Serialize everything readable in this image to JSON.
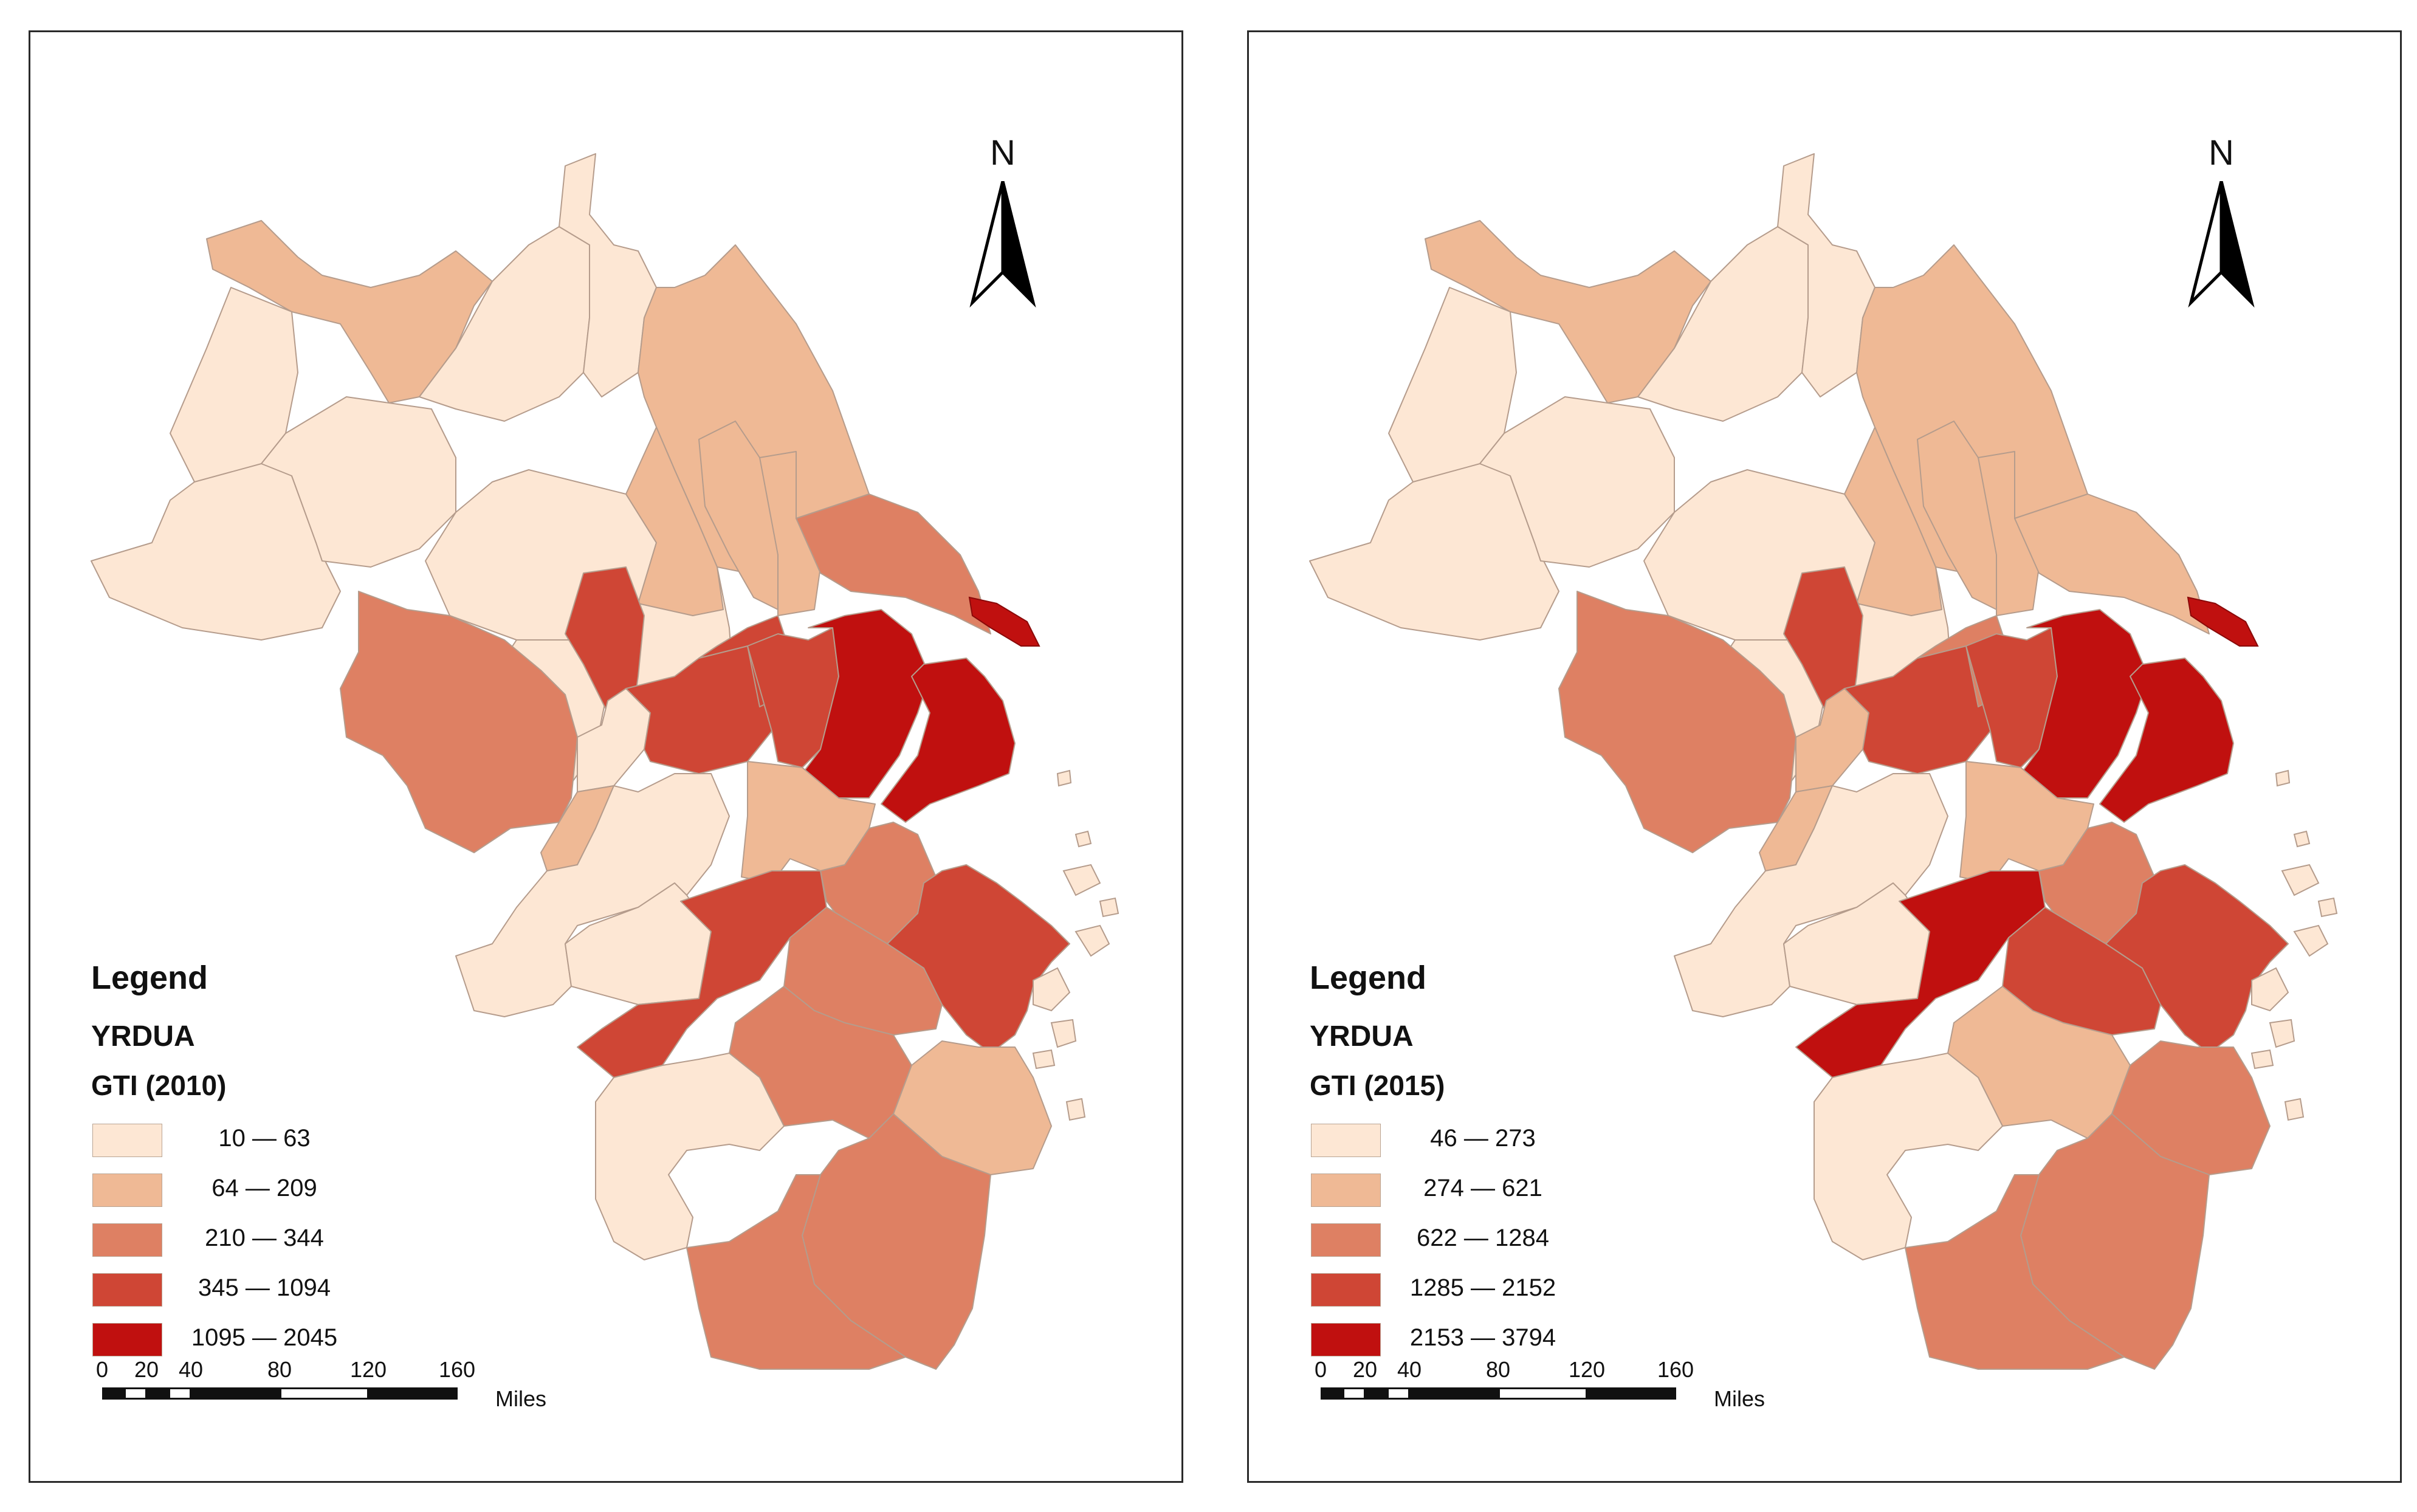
{
  "maps": [
    {
      "legend_title": "Legend",
      "layer_name": "YRDUA",
      "field_label": "GTI (2010)",
      "classes": [
        {
          "label": "10 — 63",
          "color": "#fde7d4"
        },
        {
          "label": "64 — 209",
          "color": "#efb995"
        },
        {
          "label": "210 — 344",
          "color": "#de8063"
        },
        {
          "label": "345 — 1094",
          "color": "#cf4635"
        },
        {
          "label": "1095 — 2045",
          "color": "#c0100f"
        }
      ],
      "region_classes": [
        0,
        1,
        0,
        0,
        0,
        0,
        0,
        1,
        0,
        0,
        1,
        1,
        1,
        2,
        2,
        3,
        0,
        1,
        3,
        3,
        3,
        4,
        4,
        1,
        2,
        0,
        0,
        3,
        2,
        3,
        2,
        1,
        2,
        0,
        2
      ]
    },
    {
      "legend_title": "Legend",
      "layer_name": "YRDUA",
      "field_label": "GTI (2015)",
      "classes": [
        {
          "label": "46 — 273",
          "color": "#fde7d4"
        },
        {
          "label": "274 — 621",
          "color": "#efb995"
        },
        {
          "label": "622 — 1284",
          "color": "#de8063"
        },
        {
          "label": "1285 — 2152",
          "color": "#cf4635"
        },
        {
          "label": "2153 — 3794",
          "color": "#c0100f"
        }
      ],
      "region_classes": [
        0,
        1,
        0,
        0,
        0,
        0,
        0,
        1,
        0,
        0,
        1,
        1,
        1,
        1,
        2,
        3,
        1,
        1,
        3,
        2,
        3,
        4,
        4,
        1,
        2,
        0,
        0,
        4,
        3,
        3,
        1,
        2,
        2,
        0,
        2
      ]
    }
  ],
  "north_label": "N",
  "scale": {
    "ticks": [
      "0",
      "20",
      "40",
      "80",
      "120",
      "160"
    ],
    "unit": "Miles"
  },
  "outline_color": "#b59c8c"
}
